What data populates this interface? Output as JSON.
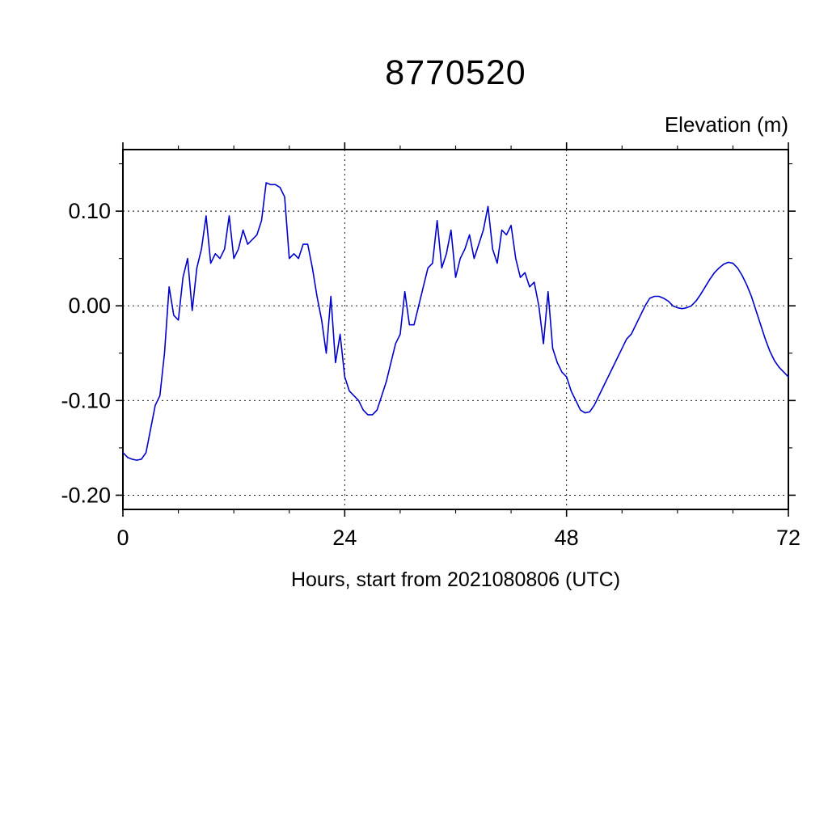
{
  "chart_data": {
    "type": "line",
    "title": "8770520",
    "ylabel": "Elevation (m)",
    "xlabel": "Hours, start from 2021080806 (UTC)",
    "xlim": [
      0,
      72
    ],
    "ylim": [
      -0.215,
      0.165
    ],
    "xticks": {
      "major": [
        0,
        24,
        48,
        72
      ],
      "labels": [
        "0",
        "24",
        "48",
        "72"
      ],
      "minor_step": 6
    },
    "yticks": {
      "major": [
        0.1,
        0.0,
        -0.1,
        -0.2
      ],
      "labels": [
        "0.10",
        "0.00",
        "-0.10",
        "-0.20"
      ],
      "minor_step": 0.05
    },
    "grid": {
      "x": [
        24,
        48
      ],
      "y": [
        0.1,
        0.0,
        -0.1,
        -0.2
      ],
      "style": "dashed"
    },
    "legend": "none",
    "series": [
      {
        "name": "elevation",
        "color": "#0000CC",
        "x": [
          0,
          0.5,
          1,
          1.5,
          2,
          2.5,
          3,
          3.5,
          4,
          4.5,
          5,
          5.5,
          6,
          6.5,
          7,
          7.5,
          8,
          8.5,
          9,
          9.5,
          10,
          10.5,
          11,
          11.5,
          12,
          12.5,
          13,
          13.5,
          14,
          14.5,
          15,
          15.5,
          16,
          16.5,
          17,
          17.5,
          18,
          18.5,
          19,
          19.5,
          20,
          20.5,
          21,
          21.5,
          22,
          22.5,
          23,
          23.5,
          24,
          24.5,
          25,
          25.5,
          26,
          26.5,
          27,
          27.5,
          28,
          28.5,
          29,
          29.5,
          30,
          30.5,
          31,
          31.5,
          32,
          32.5,
          33,
          33.5,
          34,
          34.5,
          35,
          35.5,
          36,
          36.5,
          37,
          37.5,
          38,
          38.5,
          39,
          39.5,
          40,
          40.5,
          41,
          41.5,
          42,
          42.5,
          43,
          43.5,
          44,
          44.5,
          45,
          45.5,
          46,
          46.5,
          47,
          47.5,
          48,
          48.5,
          49,
          49.5,
          50,
          50.5,
          51,
          51.5,
          52,
          52.5,
          53,
          53.5,
          54,
          54.5,
          55,
          55.5,
          56,
          56.5,
          57,
          57.5,
          58,
          58.5,
          59,
          59.5,
          60,
          60.5,
          61,
          61.5,
          62,
          62.5,
          63,
          63.5,
          64,
          64.5,
          65,
          65.5,
          66,
          66.5,
          67,
          67.5,
          68,
          68.5,
          69,
          69.5,
          70,
          70.5,
          71,
          71.5,
          72
        ],
        "values": [
          -0.155,
          -0.16,
          -0.162,
          -0.163,
          -0.162,
          -0.155,
          -0.13,
          -0.105,
          -0.095,
          -0.05,
          0.02,
          -0.01,
          -0.015,
          0.03,
          0.05,
          -0.005,
          0.04,
          0.06,
          0.095,
          0.045,
          0.055,
          0.05,
          0.06,
          0.095,
          0.05,
          0.06,
          0.08,
          0.065,
          0.07,
          0.075,
          0.09,
          0.13,
          0.128,
          0.128,
          0.125,
          0.115,
          0.05,
          0.055,
          0.05,
          0.065,
          0.065,
          0.04,
          0.01,
          -0.015,
          -0.05,
          0.01,
          -0.06,
          -0.03,
          -0.075,
          -0.09,
          -0.095,
          -0.1,
          -0.11,
          -0.115,
          -0.115,
          -0.11,
          -0.095,
          -0.08,
          -0.06,
          -0.04,
          -0.03,
          0.015,
          -0.02,
          -0.02,
          0.0,
          0.02,
          0.04,
          0.045,
          0.09,
          0.04,
          0.055,
          0.08,
          0.03,
          0.05,
          0.06,
          0.075,
          0.05,
          0.065,
          0.08,
          0.105,
          0.06,
          0.045,
          0.08,
          0.075,
          0.085,
          0.05,
          0.03,
          0.035,
          0.02,
          0.025,
          0.0,
          -0.04,
          0.015,
          -0.045,
          -0.06,
          -0.07,
          -0.075,
          -0.09,
          -0.1,
          -0.11,
          -0.113,
          -0.112,
          -0.105,
          -0.095,
          -0.085,
          -0.075,
          -0.065,
          -0.055,
          -0.045,
          -0.035,
          -0.03,
          -0.02,
          -0.01,
          0.0,
          0.008,
          0.01,
          0.01,
          0.008,
          0.005,
          0.0,
          -0.002,
          -0.003,
          -0.002,
          0.0,
          0.005,
          0.012,
          0.02,
          0.028,
          0.035,
          0.04,
          0.044,
          0.046,
          0.045,
          0.04,
          0.032,
          0.022,
          0.01,
          -0.005,
          -0.02,
          -0.035,
          -0.048,
          -0.058,
          -0.065,
          -0.07,
          -0.075
        ]
      }
    ]
  }
}
